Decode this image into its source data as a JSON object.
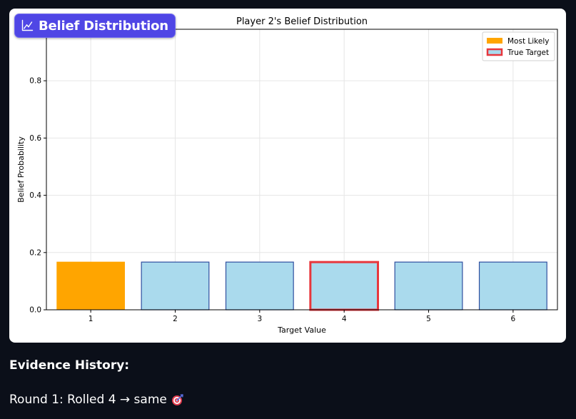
{
  "badge": {
    "label": "Belief Distribution",
    "icon": "chart-line-icon"
  },
  "chart_data": {
    "type": "bar",
    "title": "Player 2's Belief Distribution",
    "xlabel": "Target Value",
    "ylabel": "Belief Probability",
    "categories": [
      "1",
      "2",
      "3",
      "4",
      "5",
      "6"
    ],
    "values": [
      0.1667,
      0.1667,
      0.1667,
      0.1667,
      0.1667,
      0.1667
    ],
    "ylim": [
      0,
      0.98
    ],
    "yticks": [
      "0.0",
      "0.2",
      "0.4",
      "0.6",
      "0.8"
    ],
    "ytick_values": [
      0,
      0.2,
      0.4,
      0.6,
      0.8
    ],
    "grid": true,
    "legend_position": "top-right",
    "legend": [
      {
        "label": "Most Likely",
        "kind": "most-likely"
      },
      {
        "label": "True Target",
        "kind": "true-target"
      }
    ],
    "most_likely_index": 0,
    "true_target_index": 3,
    "colors": {
      "most_likely_fill": "#ffa500",
      "default_fill": "#aadaed",
      "default_edge": "#2f4f9f",
      "true_target_edge": "#e8363c",
      "grid": "#e6e6e6",
      "axis": "#000000"
    }
  },
  "evidence": {
    "heading": "Evidence History:",
    "items": [
      {
        "text": "Round 1: Rolled 4 → same",
        "icon": "target-icon"
      }
    ]
  }
}
